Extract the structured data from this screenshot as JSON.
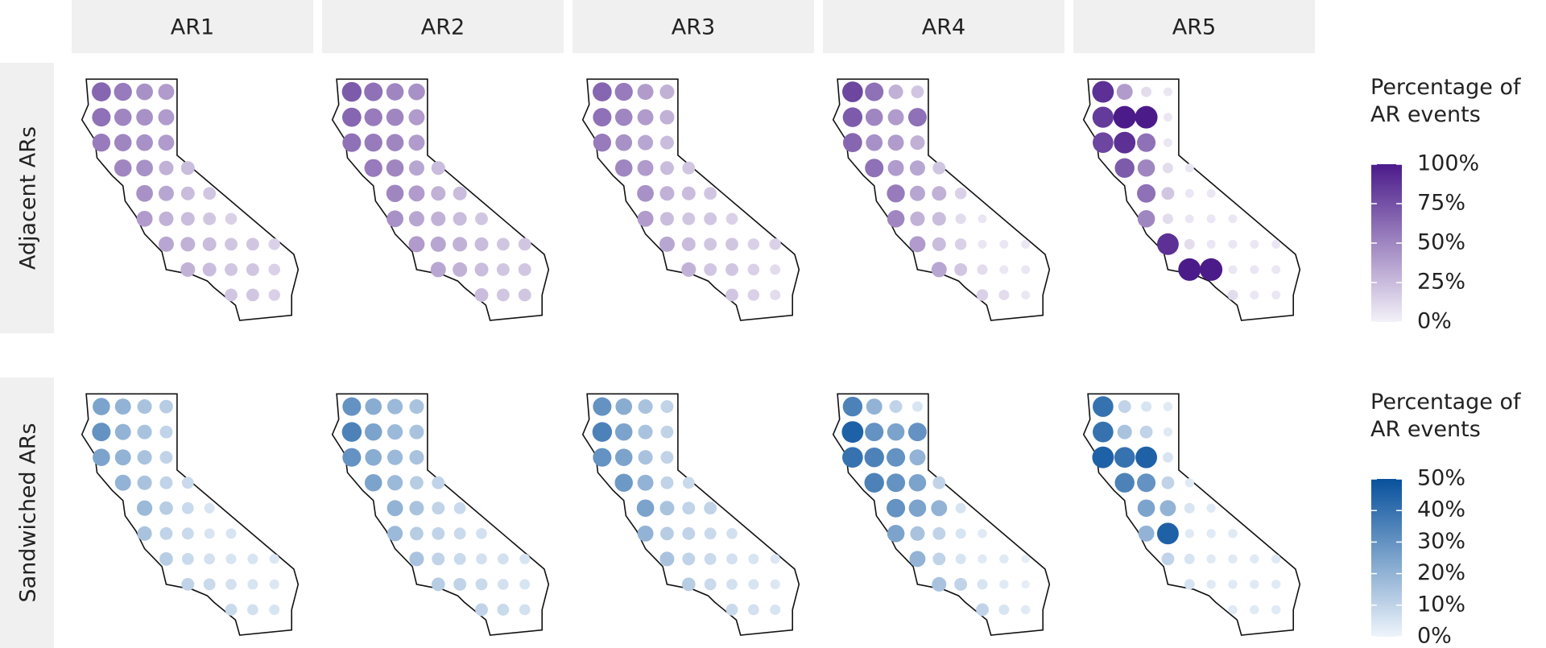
{
  "chart_data": {
    "type": "dot-map",
    "columns": [
      "AR1",
      "AR2",
      "AR3",
      "AR4",
      "AR5"
    ],
    "points": {
      "x": [
        -123.5,
        -122.5,
        -121.5,
        -120.5,
        -123.5,
        -122.5,
        -121.5,
        -120.5,
        -123.5,
        -122.5,
        -121.5,
        -120.5,
        -122.5,
        -121.5,
        -120.5,
        -119.5,
        -121.5,
        -120.5,
        -119.5,
        -118.5,
        -121.5,
        -120.5,
        -119.5,
        -118.5,
        -117.5,
        -120.5,
        -119.5,
        -118.5,
        -117.5,
        -116.5,
        -115.5,
        -119.5,
        -118.5,
        -117.5,
        -116.5,
        -115.5,
        -117.5,
        -116.5,
        -115.5
      ],
      "y": [
        41.5,
        41.5,
        41.5,
        41.5,
        40.5,
        40.5,
        40.5,
        40.5,
        39.5,
        39.5,
        39.5,
        39.5,
        38.5,
        38.5,
        38.5,
        38.5,
        37.5,
        37.5,
        37.5,
        37.5,
        36.5,
        36.5,
        36.5,
        36.5,
        36.5,
        35.5,
        35.5,
        35.5,
        35.5,
        35.5,
        35.5,
        34.5,
        34.5,
        34.5,
        34.5,
        34.5,
        33.5,
        33.5,
        33.5
      ]
    },
    "rows": [
      {
        "name": "Adjacent ARs",
        "legend_title": "Percentage of AR events",
        "colors": [
          "#f3f1f8",
          "#4b1b8a"
        ],
        "clim": [
          0,
          100
        ],
        "cticks": [
          {
            "value": 0,
            "label": "0%"
          },
          {
            "value": 25,
            "label": "25%"
          },
          {
            "value": 50,
            "label": "50%"
          },
          {
            "value": 75,
            "label": "75%"
          },
          {
            "value": 100,
            "label": "100%"
          }
        ],
        "panels": [
          [
            65,
            55,
            45,
            40,
            60,
            50,
            45,
            40,
            55,
            50,
            45,
            40,
            50,
            45,
            30,
            25,
            45,
            35,
            25,
            20,
            40,
            30,
            25,
            20,
            15,
            35,
            30,
            25,
            20,
            20,
            15,
            30,
            25,
            20,
            20,
            15,
            20,
            20,
            15
          ],
          [
            70,
            60,
            50,
            45,
            65,
            55,
            50,
            40,
            60,
            55,
            50,
            40,
            55,
            50,
            35,
            25,
            50,
            40,
            30,
            25,
            45,
            35,
            30,
            25,
            20,
            40,
            35,
            30,
            25,
            20,
            20,
            35,
            30,
            25,
            20,
            20,
            25,
            20,
            20
          ],
          [
            65,
            55,
            40,
            30,
            60,
            50,
            40,
            30,
            55,
            45,
            35,
            25,
            50,
            40,
            25,
            20,
            45,
            30,
            25,
            20,
            40,
            25,
            20,
            20,
            15,
            35,
            25,
            20,
            20,
            15,
            15,
            30,
            20,
            20,
            15,
            10,
            20,
            15,
            10
          ],
          [
            80,
            60,
            30,
            20,
            70,
            50,
            40,
            60,
            65,
            45,
            40,
            30,
            60,
            40,
            35,
            20,
            55,
            35,
            30,
            15,
            50,
            30,
            25,
            10,
            5,
            40,
            25,
            15,
            5,
            5,
            5,
            35,
            20,
            10,
            5,
            5,
            15,
            10,
            5
          ],
          [
            90,
            40,
            10,
            5,
            85,
            100,
            100,
            5,
            80,
            90,
            60,
            5,
            70,
            50,
            10,
            5,
            60,
            20,
            5,
            5,
            50,
            10,
            5,
            5,
            5,
            90,
            10,
            5,
            5,
            5,
            5,
            100,
            100,
            5,
            5,
            5,
            10,
            5,
            5
          ]
        ]
      },
      {
        "name": "Sandwiched ARs",
        "legend_title": "Percentage of AR events",
        "colors": [
          "#eef4fb",
          "#08519c"
        ],
        "clim": [
          0,
          50
        ],
        "cticks": [
          {
            "value": 0,
            "label": "0%"
          },
          {
            "value": 10,
            "label": "10%"
          },
          {
            "value": 20,
            "label": "20%"
          },
          {
            "value": 30,
            "label": "30%"
          },
          {
            "value": 40,
            "label": "40%"
          },
          {
            "value": 50,
            "label": "50%"
          }
        ],
        "panels": [
          [
            25,
            20,
            15,
            12,
            30,
            20,
            15,
            10,
            25,
            20,
            15,
            10,
            20,
            15,
            10,
            8,
            18,
            12,
            8,
            5,
            15,
            10,
            8,
            5,
            5,
            12,
            8,
            6,
            5,
            5,
            4,
            10,
            8,
            6,
            5,
            4,
            8,
            6,
            5
          ],
          [
            30,
            22,
            18,
            15,
            35,
            25,
            18,
            15,
            30,
            22,
            18,
            15,
            25,
            18,
            12,
            10,
            20,
            15,
            10,
            8,
            18,
            12,
            10,
            8,
            6,
            15,
            10,
            8,
            6,
            6,
            5,
            12,
            10,
            8,
            6,
            5,
            10,
            8,
            6
          ],
          [
            30,
            22,
            15,
            10,
            35,
            25,
            15,
            10,
            30,
            25,
            15,
            10,
            28,
            20,
            10,
            8,
            25,
            15,
            10,
            10,
            20,
            12,
            10,
            8,
            6,
            15,
            10,
            8,
            6,
            5,
            4,
            12,
            8,
            6,
            5,
            4,
            8,
            6,
            5
          ],
          [
            35,
            20,
            10,
            5,
            45,
            30,
            25,
            30,
            40,
            35,
            30,
            20,
            35,
            30,
            25,
            10,
            30,
            25,
            20,
            5,
            25,
            15,
            10,
            5,
            3,
            20,
            10,
            5,
            3,
            3,
            2,
            15,
            10,
            5,
            3,
            2,
            10,
            5,
            3
          ],
          [
            40,
            10,
            5,
            3,
            40,
            15,
            10,
            3,
            45,
            40,
            45,
            5,
            35,
            30,
            10,
            3,
            25,
            20,
            5,
            3,
            20,
            45,
            3,
            3,
            3,
            10,
            5,
            3,
            3,
            3,
            3,
            5,
            3,
            3,
            3,
            3,
            3,
            3,
            3
          ]
        ]
      }
    ]
  }
}
